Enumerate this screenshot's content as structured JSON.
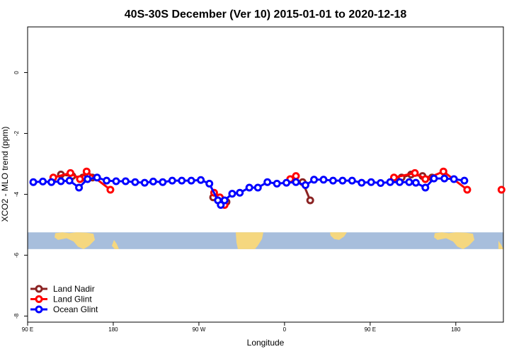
{
  "chart_data": {
    "type": "line",
    "title": "40S-30S December (Ver 10)   2015-01-01 to 2020-12-18",
    "xlabel": "Longitude",
    "ylabel": "XCO2 - MLO trend (ppm)",
    "xlim": [
      90,
      590
    ],
    "ylim": [
      -8.2,
      1.5
    ],
    "x_ticks": [
      {
        "value": 90,
        "label": "90 E"
      },
      {
        "value": 180,
        "label": "180"
      },
      {
        "value": 270,
        "label": "90 W"
      },
      {
        "value": 360,
        "label": "0"
      },
      {
        "value": 450,
        "label": "90 E"
      },
      {
        "value": 540,
        "label": "180"
      }
    ],
    "y_ticks": [
      {
        "value": 0,
        "label": "0"
      },
      {
        "value": -2,
        "label": "-2"
      },
      {
        "value": -4,
        "label": "-4"
      },
      {
        "value": -6,
        "label": "-6"
      },
      {
        "value": -8,
        "label": "-8"
      }
    ],
    "map_strip": {
      "y_top": -5.25,
      "y_bottom": -5.8,
      "ocean_color": "#a7bedc",
      "land_color": "#f5d77f"
    },
    "series": [
      {
        "name": "Land Nadir",
        "color": "#8b2323",
        "segments": [
          [
            [
              125,
              -3.35
            ],
            [
              137,
              -3.4
            ],
            [
              148,
              -3.45
            ],
            [
              158,
              -3.45
            ]
          ],
          [
            [
              285,
              -4.1
            ],
            [
              293,
              -4.15
            ],
            [
              299,
              -4.25
            ]
          ],
          [
            [
              379,
              -3.6
            ],
            [
              387,
              -4.2
            ]
          ],
          [
            [
              483,
              -3.45
            ],
            [
              493,
              -3.35
            ],
            [
              505,
              -3.4
            ],
            [
              515,
              -3.45
            ]
          ]
        ]
      },
      {
        "name": "Land Glint",
        "color": "#ff0000",
        "segments": [
          [
            [
              117,
              -3.45
            ],
            [
              135,
              -3.3
            ],
            [
              145,
              -3.5
            ],
            [
              152,
              -3.25
            ],
            [
              177,
              -3.85
            ]
          ],
          [
            [
              286,
              -3.95
            ],
            [
              292,
              -4.1
            ],
            [
              297,
              -4.35
            ]
          ],
          [
            [
              366,
              -3.5
            ],
            [
              372,
              -3.4
            ]
          ],
          [
            [
              475,
              -3.45
            ],
            [
              497,
              -3.3
            ],
            [
              508,
              -3.5
            ],
            [
              527,
              -3.25
            ],
            [
              552,
              -3.85
            ]
          ],
          [
            [
              588,
              -3.85
            ]
          ]
        ]
      },
      {
        "name": "Ocean Glint",
        "color": "#0000ff",
        "segments": [
          [
            [
              96,
              -3.6
            ],
            [
              106,
              -3.58
            ],
            [
              115,
              -3.6
            ],
            [
              125,
              -3.57
            ],
            [
              134,
              -3.55
            ],
            [
              144,
              -3.78
            ],
            [
              153,
              -3.5
            ],
            [
              163,
              -3.45
            ],
            [
              173,
              -3.55
            ],
            [
              183,
              -3.57
            ],
            [
              193,
              -3.57
            ],
            [
              203,
              -3.6
            ],
            [
              213,
              -3.62
            ],
            [
              222,
              -3.58
            ],
            [
              232,
              -3.6
            ],
            [
              242,
              -3.55
            ],
            [
              252,
              -3.55
            ],
            [
              262,
              -3.55
            ],
            [
              272,
              -3.53
            ],
            [
              281,
              -3.65
            ],
            [
              290,
              -4.2
            ],
            [
              293,
              -4.35
            ],
            [
              297,
              -4.2
            ],
            [
              305,
              -3.98
            ],
            [
              313,
              -3.95
            ],
            [
              323,
              -3.78
            ],
            [
              332,
              -3.78
            ],
            [
              342,
              -3.6
            ],
            [
              352,
              -3.65
            ],
            [
              362,
              -3.62
            ],
            [
              372,
              -3.6
            ],
            [
              382,
              -3.7
            ],
            [
              391,
              -3.52
            ],
            [
              401,
              -3.52
            ],
            [
              411,
              -3.55
            ],
            [
              421,
              -3.55
            ],
            [
              431,
              -3.55
            ],
            [
              441,
              -3.62
            ],
            [
              451,
              -3.6
            ],
            [
              461,
              -3.63
            ],
            [
              471,
              -3.6
            ],
            [
              481,
              -3.6
            ],
            [
              491,
              -3.6
            ],
            [
              498,
              -3.62
            ],
            [
              508,
              -3.78
            ],
            [
              517,
              -3.48
            ],
            [
              528,
              -3.48
            ],
            [
              538,
              -3.5
            ],
            [
              549,
              -3.55
            ]
          ]
        ]
      }
    ],
    "legend": {
      "position": "bottom-left",
      "entries": [
        "Land Nadir",
        "Land Glint",
        "Ocean Glint"
      ]
    }
  }
}
